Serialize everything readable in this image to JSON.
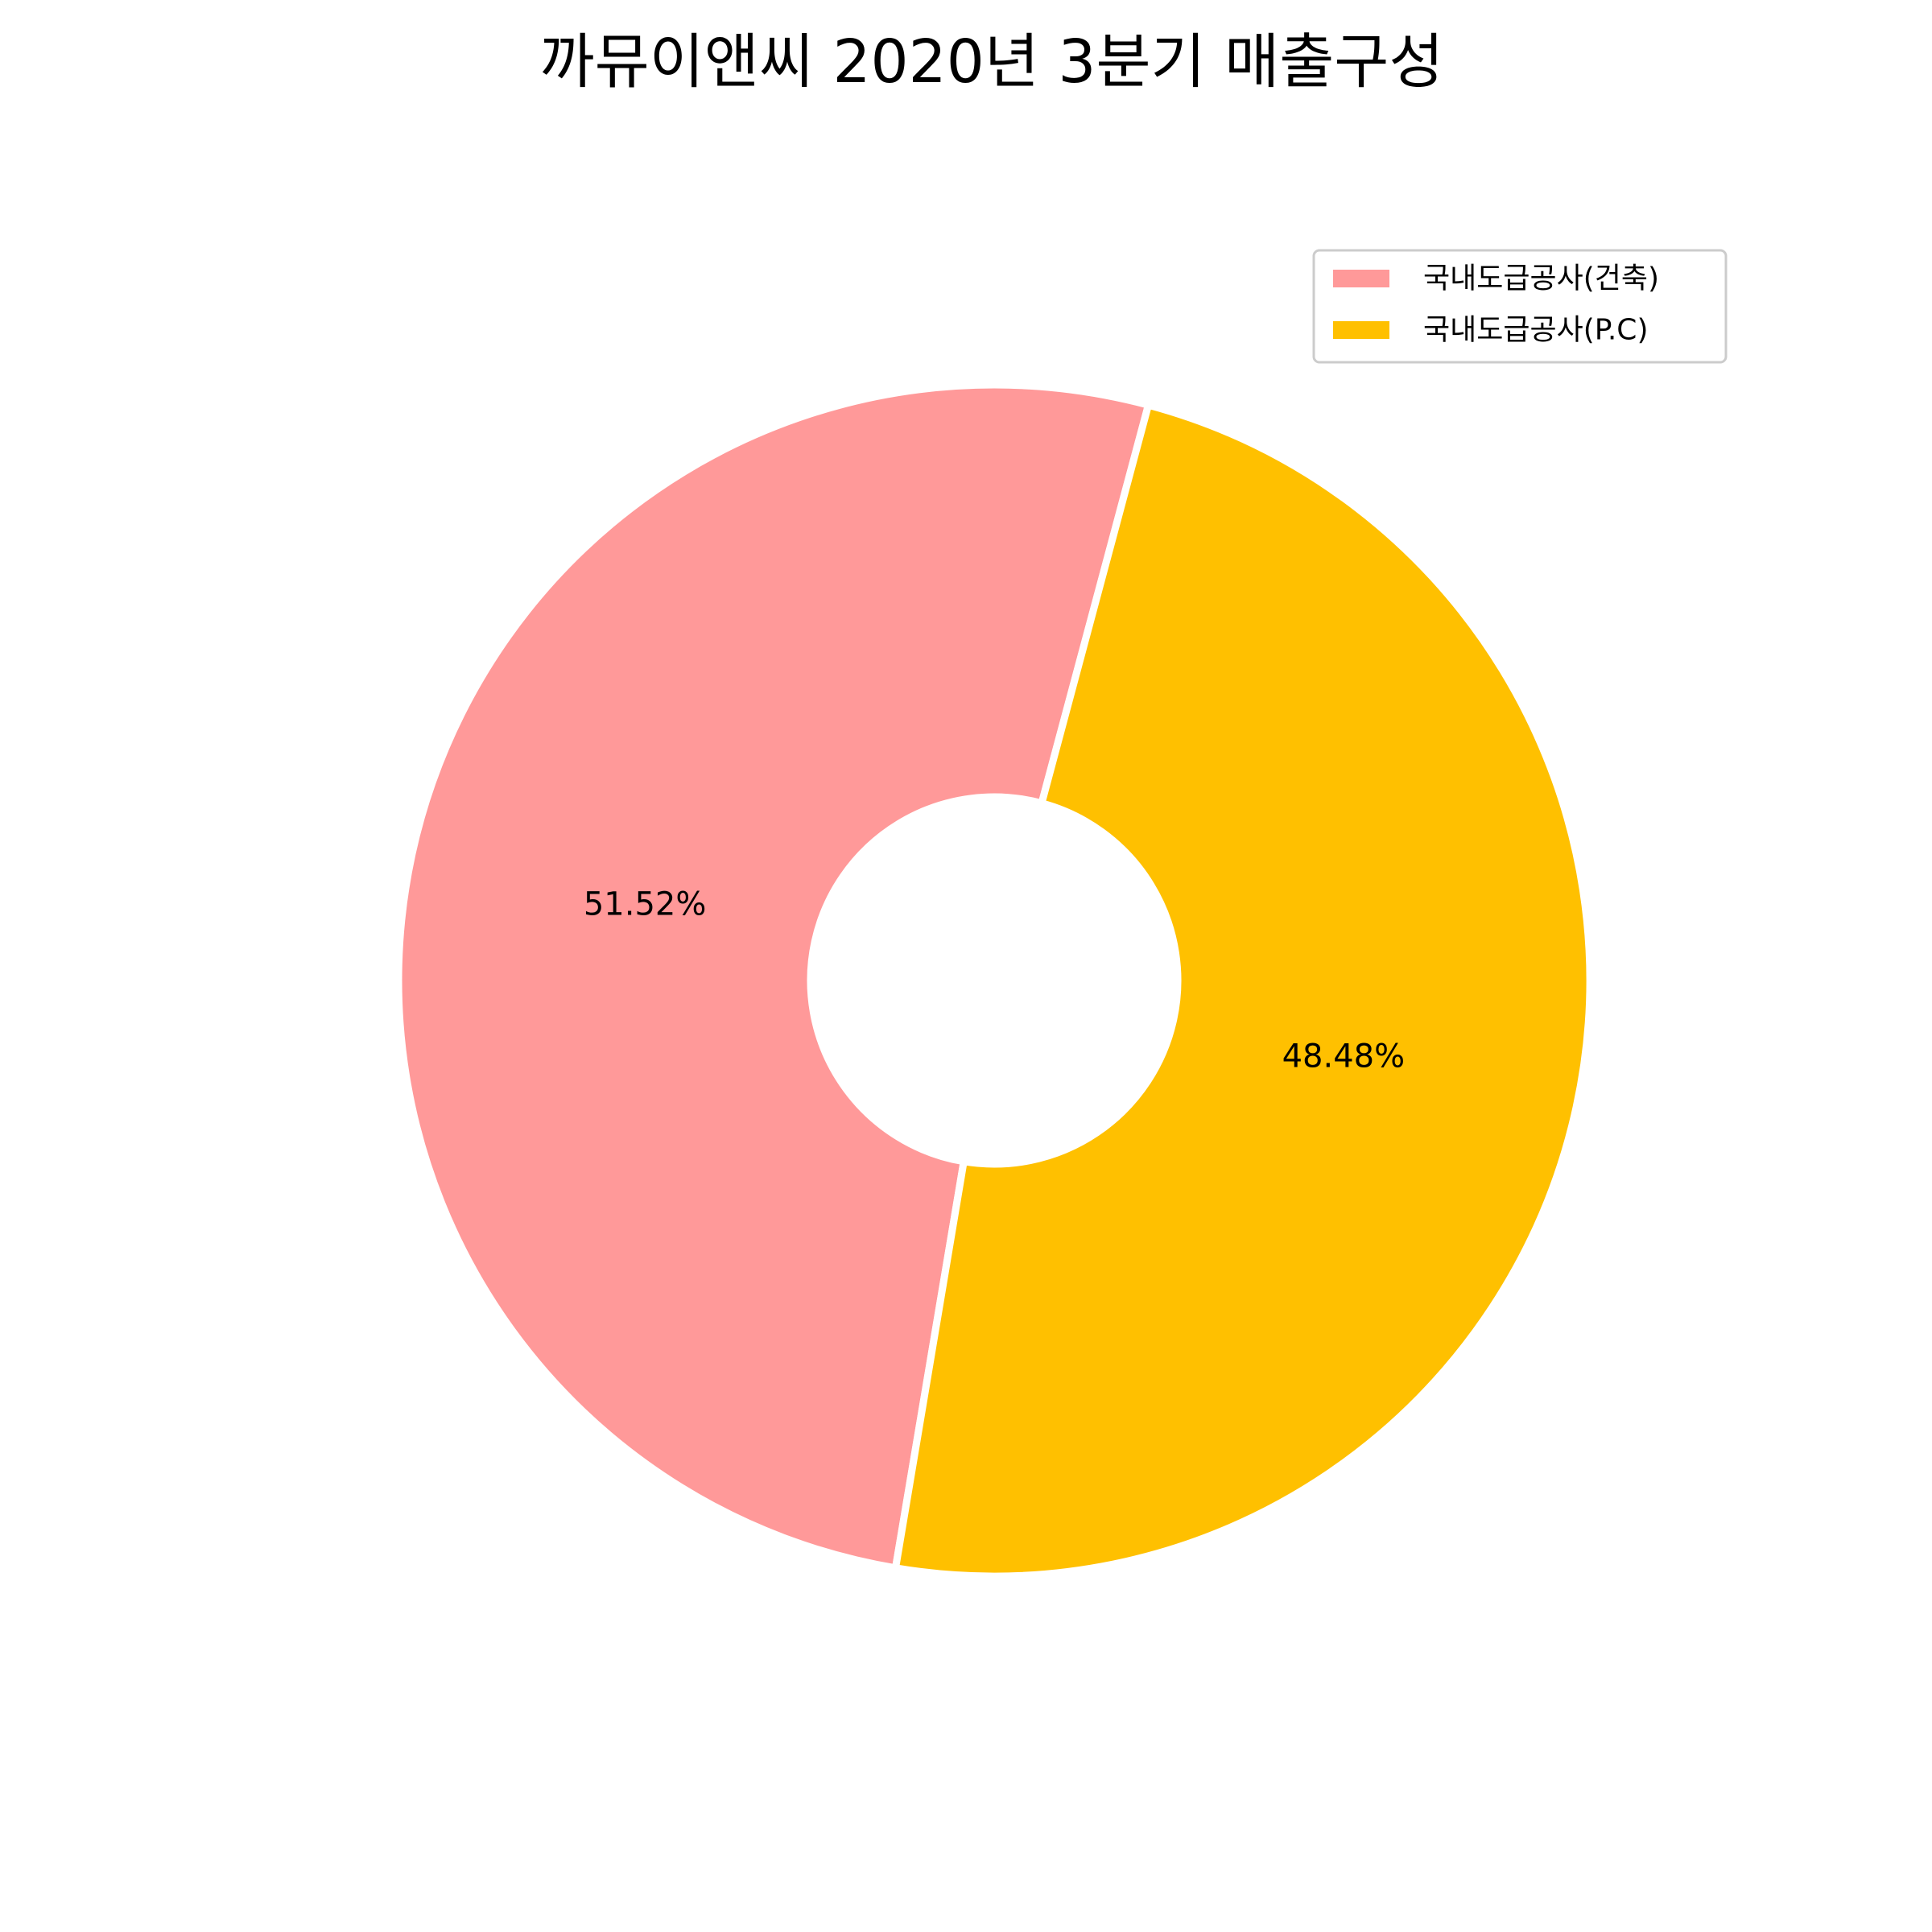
{
  "chart_data": {
    "type": "pie",
    "style": "donut",
    "title": "까뮤이앤씨 2020년 3분기 매출구성",
    "categories": [
      "국내도급공사(건축)",
      "국내도급공사(P.C)"
    ],
    "values": [
      51.52,
      48.48
    ],
    "labels": [
      "51.52%",
      "48.48%"
    ],
    "colors": [
      "#FF9999",
      "#FFC000"
    ],
    "legend_position": "upper-right",
    "start_angle_deg": 75,
    "direction": "counterclockwise"
  }
}
